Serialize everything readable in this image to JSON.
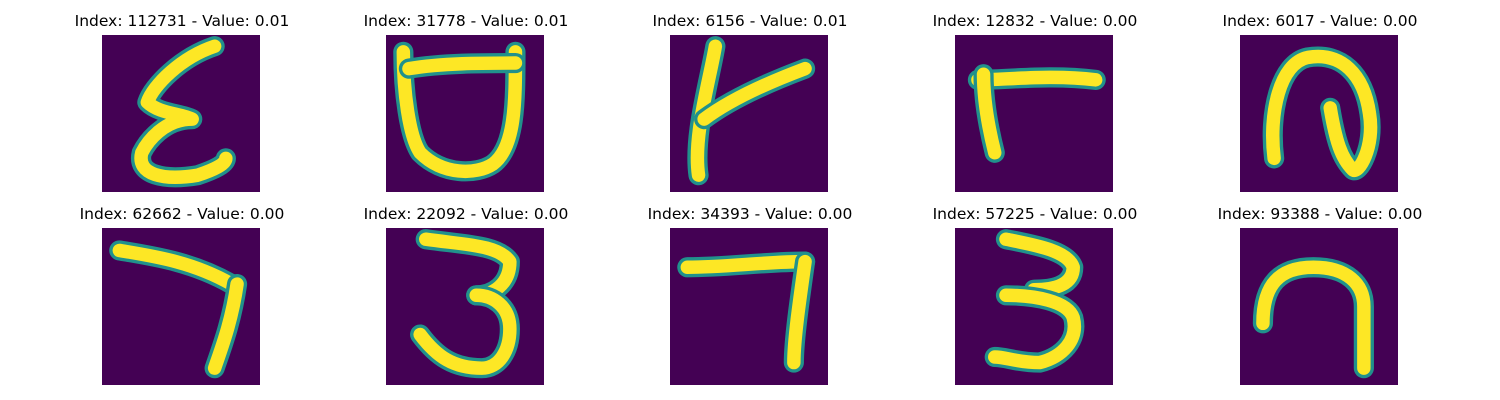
{
  "panels": [
    {
      "title": "Index: 112731 - Value: 0.01",
      "glyph": "epsilon-digit"
    },
    {
      "title": "Index: 31778 - Value: 0.01",
      "glyph": "cup-digit"
    },
    {
      "title": "Index: 6156 - Value: 0.01",
      "glyph": "k-digit"
    },
    {
      "title": "Index: 12832 - Value: 0.00",
      "glyph": "l-turned-digit"
    },
    {
      "title": "Index: 6017 - Value: 0.00",
      "glyph": "loop-digit"
    },
    {
      "title": "Index: 62662 - Value: 0.00",
      "glyph": "seven-digit"
    },
    {
      "title": "Index: 22092 - Value: 0.00",
      "glyph": "three-digit"
    },
    {
      "title": "Index: 34393 - Value: 0.00",
      "glyph": "seven-digit"
    },
    {
      "title": "Index: 57225 - Value: 0.00",
      "glyph": "three-digit"
    },
    {
      "title": "Index: 93388 - Value: 0.00",
      "glyph": "seven-digit"
    }
  ],
  "colors": {
    "background": "#440154",
    "mid": "#21918c",
    "stroke": "#fde725"
  }
}
